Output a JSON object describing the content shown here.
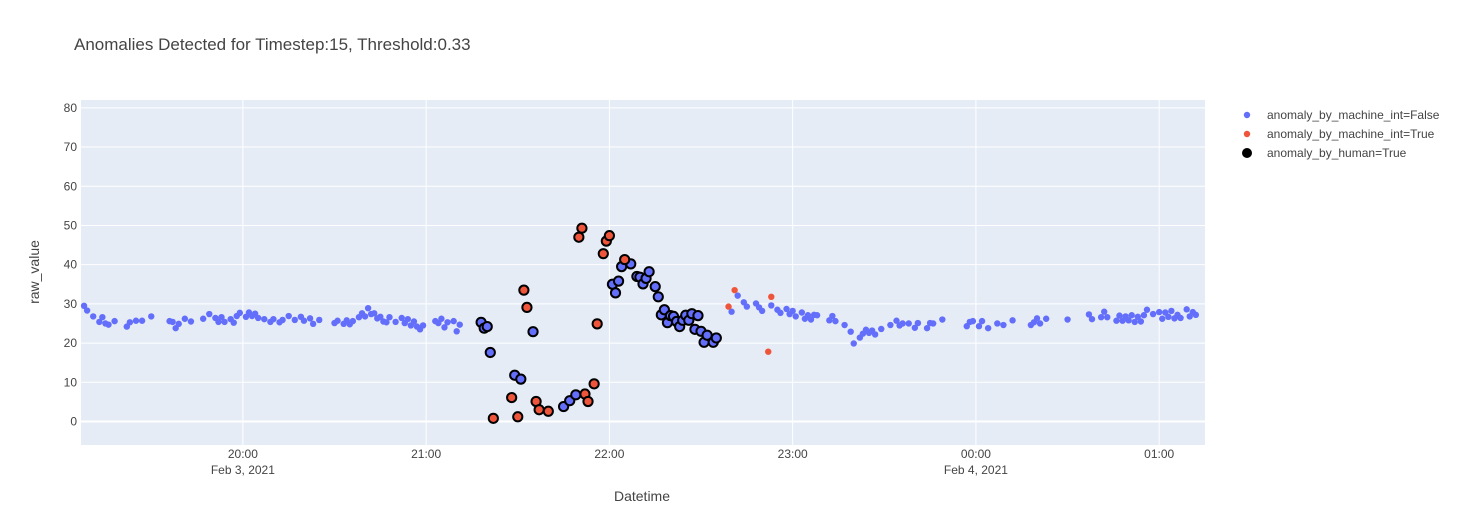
{
  "chart_data": {
    "type": "scatter",
    "title": "Anomalies Detected for Timestep:15, Threshold:0.33",
    "xlabel": "Datetime",
    "ylabel": "raw_value",
    "x_range": [
      "2021-02-03 19:07",
      "2021-02-04 01:15"
    ],
    "y_range": [
      -6,
      82
    ],
    "grid": true,
    "legend_placement": "top-right",
    "x_ticks": [
      {
        "x": "2021-02-03 20:00",
        "label": "20:00",
        "sublabel": "Feb 3, 2021"
      },
      {
        "x": "2021-02-03 21:00",
        "label": "21:00",
        "sublabel": ""
      },
      {
        "x": "2021-02-03 22:00",
        "label": "22:00",
        "sublabel": ""
      },
      {
        "x": "2021-02-03 23:00",
        "label": "23:00",
        "sublabel": ""
      },
      {
        "x": "2021-02-04 00:00",
        "label": "00:00",
        "sublabel": "Feb 4, 2021"
      },
      {
        "x": "2021-02-04 01:00",
        "label": "01:00",
        "sublabel": ""
      }
    ],
    "y_ticks": [
      0,
      10,
      20,
      30,
      40,
      50,
      60,
      70,
      80
    ],
    "colors": {
      "machine_false": "#636efa",
      "machine_true": "#ef553b",
      "human_outline": "#000000",
      "plot_bg": "#e5ecf6",
      "grid": "#ffffff"
    },
    "series": [
      {
        "name": "anomaly_by_machine_int=False",
        "color": "#636efa",
        "points": [
          [
            "2021-02-03 19:08",
            29.5
          ],
          [
            "2021-02-03 19:09",
            28.3
          ],
          [
            "2021-02-03 19:11",
            26.8
          ],
          [
            "2021-02-03 19:13",
            25.4
          ],
          [
            "2021-02-03 19:14",
            26.6
          ],
          [
            "2021-02-03 19:15",
            25.0
          ],
          [
            "2021-02-03 19:16",
            24.7
          ],
          [
            "2021-02-03 19:18",
            25.6
          ],
          [
            "2021-02-03 19:22",
            24.2
          ],
          [
            "2021-02-03 19:23",
            25.3
          ],
          [
            "2021-02-03 19:25",
            25.7
          ],
          [
            "2021-02-03 19:27",
            25.7
          ],
          [
            "2021-02-03 19:30",
            26.8
          ],
          [
            "2021-02-03 19:36",
            25.6
          ],
          [
            "2021-02-03 19:37",
            25.4
          ],
          [
            "2021-02-03 19:38",
            23.8
          ],
          [
            "2021-02-03 19:39",
            24.9
          ],
          [
            "2021-02-03 19:41",
            26.2
          ],
          [
            "2021-02-03 19:43",
            25.5
          ],
          [
            "2021-02-03 19:47",
            26.2
          ],
          [
            "2021-02-03 19:49",
            27.4
          ],
          [
            "2021-02-03 19:51",
            26.4
          ],
          [
            "2021-02-03 19:52",
            25.4
          ],
          [
            "2021-02-03 19:53",
            26.6
          ],
          [
            "2021-02-03 19:54",
            25.4
          ],
          [
            "2021-02-03 19:56",
            26.1
          ],
          [
            "2021-02-03 19:57",
            25.2
          ],
          [
            "2021-02-03 19:58",
            26.9
          ],
          [
            "2021-02-03 19:59",
            27.7
          ],
          [
            "2021-02-03 20:01",
            26.7
          ],
          [
            "2021-02-03 20:02",
            27.8
          ],
          [
            "2021-02-03 20:03",
            26.9
          ],
          [
            "2021-02-03 20:04",
            27.5
          ],
          [
            "2021-02-03 20:05",
            26.4
          ],
          [
            "2021-02-03 20:07",
            26.1
          ],
          [
            "2021-02-03 20:09",
            25.4
          ],
          [
            "2021-02-03 20:10",
            26.1
          ],
          [
            "2021-02-03 20:12",
            25.3
          ],
          [
            "2021-02-03 20:13",
            25.9
          ],
          [
            "2021-02-03 20:15",
            26.9
          ],
          [
            "2021-02-03 20:17",
            25.9
          ],
          [
            "2021-02-03 20:19",
            26.7
          ],
          [
            "2021-02-03 20:20",
            25.7
          ],
          [
            "2021-02-03 20:22",
            26.3
          ],
          [
            "2021-02-03 20:23",
            24.9
          ],
          [
            "2021-02-03 20:25",
            25.9
          ],
          [
            "2021-02-03 20:30",
            25.1
          ],
          [
            "2021-02-03 20:31",
            25.7
          ],
          [
            "2021-02-03 20:33",
            24.9
          ],
          [
            "2021-02-03 20:34",
            25.8
          ],
          [
            "2021-02-03 20:35",
            24.8
          ],
          [
            "2021-02-03 20:36",
            25.6
          ],
          [
            "2021-02-03 20:38",
            26.6
          ],
          [
            "2021-02-03 20:39",
            27.6
          ],
          [
            "2021-02-03 20:40",
            26.8
          ],
          [
            "2021-02-03 20:41",
            28.9
          ],
          [
            "2021-02-03 20:42",
            27.4
          ],
          [
            "2021-02-03 20:43",
            27.6
          ],
          [
            "2021-02-03 20:44",
            26.3
          ],
          [
            "2021-02-03 20:45",
            26.7
          ],
          [
            "2021-02-03 20:46",
            25.5
          ],
          [
            "2021-02-03 20:47",
            25.3
          ],
          [
            "2021-02-03 20:48",
            26.6
          ],
          [
            "2021-02-03 20:50",
            25.4
          ],
          [
            "2021-02-03 20:52",
            26.4
          ],
          [
            "2021-02-03 20:53",
            25.1
          ],
          [
            "2021-02-03 20:54",
            26.1
          ],
          [
            "2021-02-03 20:55",
            24.5
          ],
          [
            "2021-02-03 20:56",
            25.5
          ],
          [
            "2021-02-03 20:57",
            24.2
          ],
          [
            "2021-02-03 20:58",
            23.5
          ],
          [
            "2021-02-03 20:59",
            24.5
          ],
          [
            "2021-02-03 21:03",
            25.6
          ],
          [
            "2021-02-03 21:04",
            25.1
          ],
          [
            "2021-02-03 21:05",
            26.2
          ],
          [
            "2021-02-03 21:06",
            24.0
          ],
          [
            "2021-02-03 21:07",
            25.3
          ],
          [
            "2021-02-03 21:09",
            25.6
          ],
          [
            "2021-02-03 21:10",
            23.0
          ],
          [
            "2021-02-03 21:11",
            24.7
          ],
          [
            "2021-02-03 22:40",
            28.0
          ],
          [
            "2021-02-03 22:42",
            32.1
          ],
          [
            "2021-02-03 22:44",
            30.4
          ],
          [
            "2021-02-03 22:45",
            29.3
          ],
          [
            "2021-02-03 22:48",
            30.1
          ],
          [
            "2021-02-03 22:49",
            29.1
          ],
          [
            "2021-02-03 22:50",
            28.2
          ],
          [
            "2021-02-03 22:53",
            29.6
          ],
          [
            "2021-02-03 22:55",
            28.5
          ],
          [
            "2021-02-03 22:56",
            27.7
          ],
          [
            "2021-02-03 22:58",
            28.7
          ],
          [
            "2021-02-03 22:59",
            27.4
          ],
          [
            "2021-02-03 23:00",
            28.2
          ],
          [
            "2021-02-03 23:01",
            26.8
          ],
          [
            "2021-02-03 23:03",
            27.8
          ],
          [
            "2021-02-03 23:04",
            26.2
          ],
          [
            "2021-02-03 23:05",
            27.1
          ],
          [
            "2021-02-03 23:06",
            26.0
          ],
          [
            "2021-02-03 23:07",
            27.2
          ],
          [
            "2021-02-03 23:08",
            27.1
          ],
          [
            "2021-02-03 23:12",
            25.8
          ],
          [
            "2021-02-03 23:13",
            26.9
          ],
          [
            "2021-02-03 23:14",
            25.6
          ],
          [
            "2021-02-03 23:17",
            24.6
          ],
          [
            "2021-02-03 23:19",
            22.9
          ],
          [
            "2021-02-03 23:20",
            19.9
          ],
          [
            "2021-02-03 23:22",
            21.4
          ],
          [
            "2021-02-03 23:23",
            22.4
          ],
          [
            "2021-02-03 23:24",
            23.4
          ],
          [
            "2021-02-03 23:25",
            22.6
          ],
          [
            "2021-02-03 23:26",
            23.2
          ],
          [
            "2021-02-03 23:27",
            22.2
          ],
          [
            "2021-02-03 23:29",
            23.6
          ],
          [
            "2021-02-03 23:32",
            24.6
          ],
          [
            "2021-02-03 23:34",
            25.7
          ],
          [
            "2021-02-03 23:35",
            24.5
          ],
          [
            "2021-02-03 23:36",
            25.0
          ],
          [
            "2021-02-03 23:38",
            25.0
          ],
          [
            "2021-02-03 23:40",
            23.9
          ],
          [
            "2021-02-03 23:41",
            25.1
          ],
          [
            "2021-02-03 23:44",
            23.8
          ],
          [
            "2021-02-03 23:45",
            25.1
          ],
          [
            "2021-02-03 23:46",
            25.0
          ],
          [
            "2021-02-03 23:49",
            26.0
          ],
          [
            "2021-02-03 23:57",
            24.3
          ],
          [
            "2021-02-03 23:58",
            25.4
          ],
          [
            "2021-02-03 23:59",
            25.6
          ],
          [
            "2021-02-04 00:01",
            24.3
          ],
          [
            "2021-02-04 00:02",
            25.6
          ],
          [
            "2021-02-04 00:04",
            23.8
          ],
          [
            "2021-02-04 00:07",
            25.0
          ],
          [
            "2021-02-04 00:09",
            24.6
          ],
          [
            "2021-02-04 00:12",
            25.8
          ],
          [
            "2021-02-04 00:18",
            24.6
          ],
          [
            "2021-02-04 00:19",
            25.3
          ],
          [
            "2021-02-04 00:20",
            26.3
          ],
          [
            "2021-02-04 00:21",
            25.0
          ],
          [
            "2021-02-04 00:23",
            26.2
          ],
          [
            "2021-02-04 00:30",
            26.0
          ],
          [
            "2021-02-04 00:37",
            27.3
          ],
          [
            "2021-02-04 00:38",
            26.1
          ],
          [
            "2021-02-04 00:41",
            26.6
          ],
          [
            "2021-02-04 00:42",
            28.0
          ],
          [
            "2021-02-04 00:43",
            26.6
          ],
          [
            "2021-02-04 00:46",
            25.7
          ],
          [
            "2021-02-04 00:47",
            27.0
          ],
          [
            "2021-02-04 00:48",
            25.7
          ],
          [
            "2021-02-04 00:49",
            26.8
          ],
          [
            "2021-02-04 00:50",
            25.8
          ],
          [
            "2021-02-04 00:51",
            27.1
          ],
          [
            "2021-02-04 00:52",
            25.4
          ],
          [
            "2021-02-04 00:53",
            26.7
          ],
          [
            "2021-02-04 00:54",
            25.5
          ],
          [
            "2021-02-04 00:55",
            27.1
          ],
          [
            "2021-02-04 00:56",
            28.5
          ],
          [
            "2021-02-04 00:58",
            27.4
          ],
          [
            "2021-02-04 01:00",
            27.9
          ],
          [
            "2021-02-04 01:01",
            26.2
          ],
          [
            "2021-02-04 01:02",
            27.8
          ],
          [
            "2021-02-04 01:03",
            26.7
          ],
          [
            "2021-02-04 01:04",
            28.2
          ],
          [
            "2021-02-04 01:05",
            26.3
          ],
          [
            "2021-02-04 01:06",
            27.2
          ],
          [
            "2021-02-04 01:07",
            26.4
          ],
          [
            "2021-02-04 01:09",
            28.6
          ],
          [
            "2021-02-04 01:10",
            26.8
          ],
          [
            "2021-02-04 01:11",
            27.9
          ],
          [
            "2021-02-04 01:12",
            27.2
          ]
        ]
      },
      {
        "name": "anomaly_by_machine_int=True",
        "color": "#ef553b",
        "points": [
          [
            "2021-02-03 22:39",
            29.3
          ],
          [
            "2021-02-03 22:41",
            33.5
          ],
          [
            "2021-02-03 22:52",
            17.8
          ],
          [
            "2021-02-03 22:53",
            31.8
          ]
        ]
      },
      {
        "name": "anomaly_by_human=True",
        "color": "#000000",
        "points": [
          [
            "2021-02-03 21:18",
            25.3,
            "#636efa"
          ],
          [
            "2021-02-03 21:19",
            23.8,
            "#636efa"
          ],
          [
            "2021-02-03 21:20",
            24.2,
            "#636efa"
          ],
          [
            "2021-02-03 21:21",
            17.6,
            "#636efa"
          ],
          [
            "2021-02-03 21:29",
            11.8,
            "#636efa"
          ],
          [
            "2021-02-03 21:31",
            10.8,
            "#636efa"
          ],
          [
            "2021-02-03 21:35",
            22.9,
            "#636efa"
          ],
          [
            "2021-02-03 21:45",
            3.8,
            "#636efa"
          ],
          [
            "2021-02-03 21:47",
            5.3,
            "#636efa"
          ],
          [
            "2021-02-03 21:49",
            6.8,
            "#636efa"
          ],
          [
            "2021-02-03 22:01",
            35.0,
            "#636efa"
          ],
          [
            "2021-02-03 22:02",
            32.8,
            "#636efa"
          ],
          [
            "2021-02-03 22:03",
            35.8,
            "#636efa"
          ],
          [
            "2021-02-03 22:04",
            39.5,
            "#636efa"
          ],
          [
            "2021-02-03 22:07",
            40.2,
            "#636efa"
          ],
          [
            "2021-02-03 22:09",
            37.0,
            "#636efa"
          ],
          [
            "2021-02-03 22:10",
            36.8,
            "#636efa"
          ],
          [
            "2021-02-03 22:11",
            35.1,
            "#636efa"
          ],
          [
            "2021-02-03 22:12",
            36.5,
            "#636efa"
          ],
          [
            "2021-02-03 22:13",
            38.2,
            "#636efa"
          ],
          [
            "2021-02-03 22:15",
            34.4,
            "#636efa"
          ],
          [
            "2021-02-03 22:16",
            31.8,
            "#636efa"
          ],
          [
            "2021-02-03 22:17",
            27.2,
            "#636efa"
          ],
          [
            "2021-02-03 22:18",
            28.5,
            "#636efa"
          ],
          [
            "2021-02-03 22:19",
            25.2,
            "#636efa"
          ],
          [
            "2021-02-03 22:20",
            27.0,
            "#636efa"
          ],
          [
            "2021-02-03 22:21",
            26.8,
            "#636efa"
          ],
          [
            "2021-02-03 22:22",
            25.5,
            "#636efa"
          ],
          [
            "2021-02-03 22:23",
            24.2,
            "#636efa"
          ],
          [
            "2021-02-03 22:24",
            25.8,
            "#636efa"
          ],
          [
            "2021-02-03 22:25",
            27.1,
            "#636efa"
          ],
          [
            "2021-02-03 22:26",
            25.8,
            "#636efa"
          ],
          [
            "2021-02-03 22:27",
            27.5,
            "#636efa"
          ],
          [
            "2021-02-03 22:28",
            23.5,
            "#636efa"
          ],
          [
            "2021-02-03 22:29",
            27.0,
            "#636efa"
          ],
          [
            "2021-02-03 22:30",
            23.0,
            "#636efa"
          ],
          [
            "2021-02-03 22:31",
            20.2,
            "#636efa"
          ],
          [
            "2021-02-03 22:32",
            22.0,
            "#636efa"
          ],
          [
            "2021-02-03 22:34",
            20.2,
            "#636efa"
          ],
          [
            "2021-02-03 22:35",
            21.3,
            "#636efa"
          ],
          [
            "2021-02-03 21:22",
            0.8,
            "#ef553b"
          ],
          [
            "2021-02-03 21:28",
            6.1,
            "#ef553b"
          ],
          [
            "2021-02-03 21:30",
            1.2,
            "#ef553b"
          ],
          [
            "2021-02-03 21:32",
            33.5,
            "#ef553b"
          ],
          [
            "2021-02-03 21:33",
            29.1,
            "#ef553b"
          ],
          [
            "2021-02-03 21:36",
            5.1,
            "#ef553b"
          ],
          [
            "2021-02-03 21:37",
            3.0,
            "#ef553b"
          ],
          [
            "2021-02-03 21:40",
            2.6,
            "#ef553b"
          ],
          [
            "2021-02-03 21:50",
            47.0,
            "#ef553b"
          ],
          [
            "2021-02-03 21:51",
            49.3,
            "#ef553b"
          ],
          [
            "2021-02-03 21:52",
            7.0,
            "#ef553b"
          ],
          [
            "2021-02-03 21:53",
            5.1,
            "#ef553b"
          ],
          [
            "2021-02-03 21:55",
            9.6,
            "#ef553b"
          ],
          [
            "2021-02-03 21:56",
            24.9,
            "#ef553b"
          ],
          [
            "2021-02-03 21:58",
            42.8,
            "#ef553b"
          ],
          [
            "2021-02-03 21:59",
            46.0,
            "#ef553b"
          ],
          [
            "2021-02-03 22:00",
            47.4,
            "#ef553b"
          ],
          [
            "2021-02-03 22:05",
            41.3,
            "#ef553b"
          ]
        ]
      }
    ]
  }
}
